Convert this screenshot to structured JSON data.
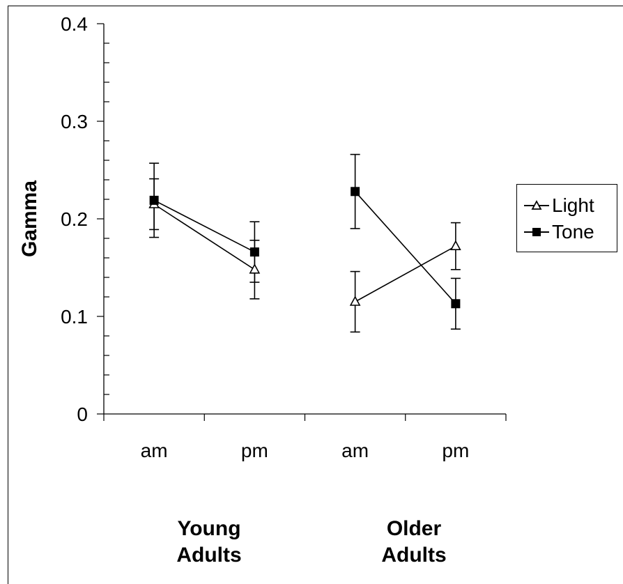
{
  "chart_data": {
    "type": "line",
    "ylabel": "Gamma",
    "ylim": [
      0,
      0.4
    ],
    "yticks": [
      "0",
      "0.1",
      "0.2",
      "0.3",
      "0.4"
    ],
    "categories": [
      "am",
      "pm",
      "am",
      "pm"
    ],
    "groups": [
      {
        "label_line1": "Young",
        "label_line2": "Adults"
      },
      {
        "label_line1": "Older",
        "label_line2": "Adults"
      }
    ],
    "series": [
      {
        "name": "Light",
        "marker": "open-triangle",
        "segments": [
          {
            "points": [
              {
                "x": 0,
                "y": 0.215,
                "err": 0.026
              },
              {
                "x": 1,
                "y": 0.148,
                "err": 0.03
              }
            ]
          },
          {
            "points": [
              {
                "x": 2,
                "y": 0.115,
                "err": 0.031
              },
              {
                "x": 3,
                "y": 0.172,
                "err": 0.024
              }
            ]
          }
        ]
      },
      {
        "name": "Tone",
        "marker": "filled-square",
        "segments": [
          {
            "points": [
              {
                "x": 0,
                "y": 0.219,
                "err": 0.038
              },
              {
                "x": 1,
                "y": 0.166,
                "err": 0.031
              }
            ]
          },
          {
            "points": [
              {
                "x": 2,
                "y": 0.228,
                "err": 0.038
              },
              {
                "x": 3,
                "y": 0.113,
                "err": 0.026
              }
            ]
          }
        ]
      }
    ],
    "legend_position": "right",
    "grid": false
  }
}
